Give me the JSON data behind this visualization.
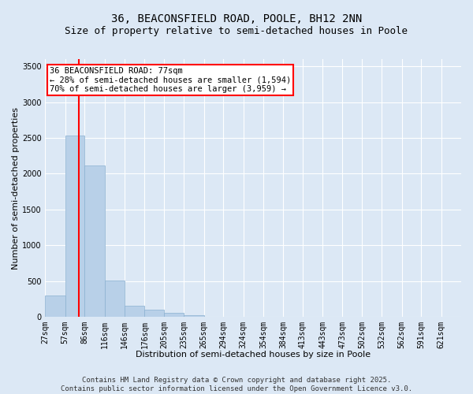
{
  "title_line1": "36, BEACONSFIELD ROAD, POOLE, BH12 2NN",
  "title_line2": "Size of property relative to semi-detached houses in Poole",
  "xlabel": "Distribution of semi-detached houses by size in Poole",
  "ylabel": "Number of semi-detached properties",
  "bar_color": "#b8d0e8",
  "bar_edge_color": "#8ab0d0",
  "bar_left_edges": [
    27,
    57,
    86,
    116,
    146,
    176,
    205,
    235,
    265,
    294,
    324,
    354,
    384,
    413,
    443,
    473,
    502,
    532,
    562,
    591
  ],
  "bar_widths": [
    30,
    29,
    30,
    30,
    30,
    29,
    30,
    30,
    29,
    30,
    30,
    30,
    29,
    30,
    30,
    29,
    30,
    30,
    29,
    30
  ],
  "bar_heights": [
    300,
    2530,
    2110,
    510,
    160,
    100,
    55,
    20,
    5,
    2,
    1,
    1,
    0,
    0,
    0,
    0,
    0,
    0,
    0,
    0
  ],
  "tick_labels": [
    "27sqm",
    "57sqm",
    "86sqm",
    "116sqm",
    "146sqm",
    "176sqm",
    "205sqm",
    "235sqm",
    "265sqm",
    "294sqm",
    "324sqm",
    "354sqm",
    "384sqm",
    "413sqm",
    "443sqm",
    "473sqm",
    "502sqm",
    "532sqm",
    "562sqm",
    "591sqm",
    "621sqm"
  ],
  "tick_positions": [
    27,
    57,
    86,
    116,
    146,
    176,
    205,
    235,
    265,
    294,
    324,
    354,
    384,
    413,
    443,
    473,
    502,
    532,
    562,
    591,
    621
  ],
  "red_line_x": 77,
  "ylim": [
    0,
    3600
  ],
  "yticks": [
    0,
    500,
    1000,
    1500,
    2000,
    2500,
    3000,
    3500
  ],
  "annotation_title": "36 BEACONSFIELD ROAD: 77sqm",
  "annotation_line2": "← 28% of semi-detached houses are smaller (1,594)",
  "annotation_line3": "70% of semi-detached houses are larger (3,959) →",
  "footer_line1": "Contains HM Land Registry data © Crown copyright and database right 2025.",
  "footer_line2": "Contains public sector information licensed under the Open Government Licence v3.0.",
  "background_color": "#dce8f5",
  "plot_bg_color": "#dce8f5",
  "grid_color": "#ffffff",
  "title_fontsize": 10,
  "subtitle_fontsize": 9,
  "axis_label_fontsize": 8,
  "tick_fontsize": 7,
  "annotation_fontsize": 7.5,
  "footer_fontsize": 6.5
}
